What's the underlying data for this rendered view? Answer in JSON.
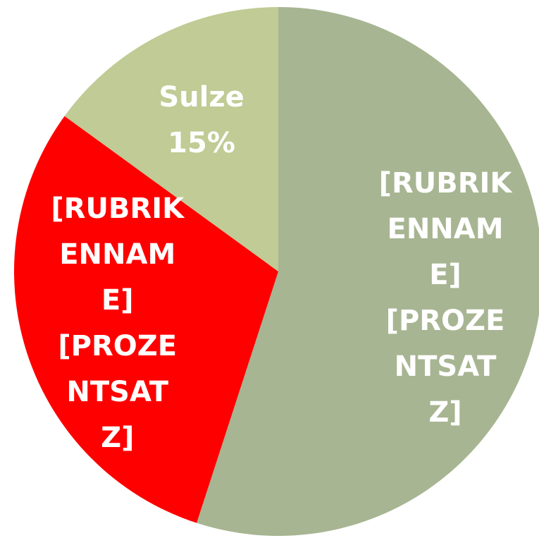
{
  "chart_data": {
    "type": "pie",
    "categories": [
      "[RUBRIKENNAME]",
      "[RUBRIKENNAME]",
      "Sulze"
    ],
    "values": [
      55,
      30,
      15
    ],
    "value_labels": [
      "[PROZENTSATZ]",
      "[PROZENTSATZ]",
      "15%"
    ],
    "colors": [
      "#a7b592",
      "#ff0000",
      "#c0cb95"
    ]
  }
}
